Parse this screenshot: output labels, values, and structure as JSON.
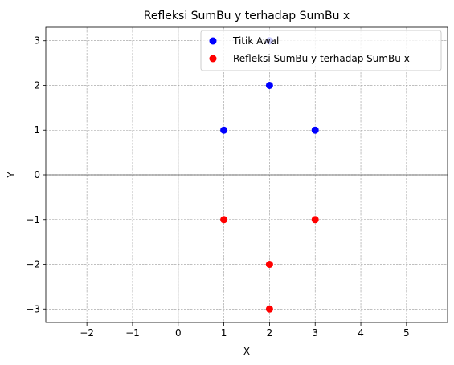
{
  "chart_data": {
    "type": "scatter",
    "title": "Refleksi SumBu y terhadap SumBu x",
    "xlabel": "X",
    "ylabel": "Y",
    "xlim": [
      -2.9,
      5.9
    ],
    "ylim": [
      -3.3,
      3.3
    ],
    "xticks": [
      -2,
      -1,
      0,
      1,
      2,
      3,
      4,
      5
    ],
    "yticks": [
      -3,
      -2,
      -1,
      0,
      1,
      2,
      3
    ],
    "grid": true,
    "grid_style": "dashed",
    "axis_lines_at_zero": true,
    "legend_position": "upper-right",
    "series": [
      {
        "name": "Titik Awal",
        "color": "#0000ff",
        "points": [
          [
            1,
            1
          ],
          [
            2,
            2
          ],
          [
            3,
            1
          ],
          [
            2,
            3
          ]
        ]
      },
      {
        "name": "Refleksi SumBu y terhadap SumBu x",
        "color": "#ff0000",
        "points": [
          [
            1,
            -1
          ],
          [
            2,
            -2
          ],
          [
            3,
            -1
          ],
          [
            2,
            -3
          ]
        ]
      }
    ]
  }
}
